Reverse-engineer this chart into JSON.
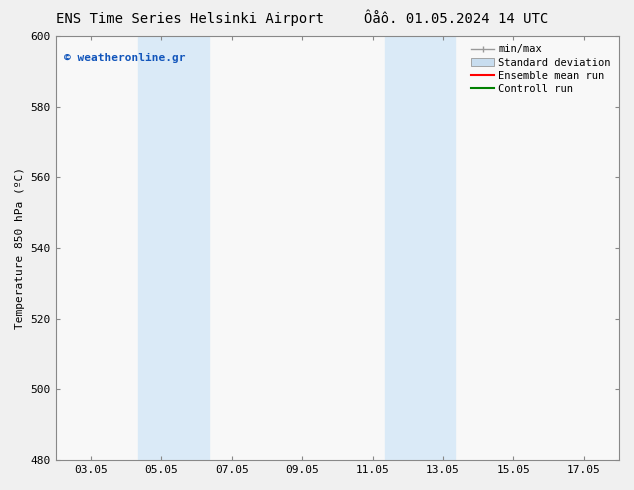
{
  "title_left": "ENS Time Series Helsinki Airport",
  "title_right": "Ôåô. 01.05.2024 14 UTC",
  "ylabel": "Temperature 850 hPa (ºC)",
  "ylim": [
    480,
    600
  ],
  "yticks": [
    480,
    500,
    520,
    540,
    560,
    580,
    600
  ],
  "xticks_labels": [
    "03.05",
    "05.05",
    "07.05",
    "09.05",
    "11.05",
    "13.05",
    "15.05",
    "17.05"
  ],
  "xticks_positions": [
    0,
    2,
    4,
    6,
    8,
    10,
    12,
    14
  ],
  "xlim": [
    -1,
    15
  ],
  "shaded_bands": [
    {
      "x_start": 1.35,
      "x_end": 3.35,
      "color": "#daeaf7"
    },
    {
      "x_start": 8.35,
      "x_end": 10.35,
      "color": "#daeaf7"
    }
  ],
  "legend_items": [
    {
      "label": "min/max",
      "color": "#aaaaaa",
      "type": "minmax"
    },
    {
      "label": "Standard deviation",
      "color": "#c8ddef",
      "type": "band"
    },
    {
      "label": "Ensemble mean run",
      "color": "#ff0000",
      "type": "line"
    },
    {
      "label": "Controll run",
      "color": "#008000",
      "type": "line"
    }
  ],
  "watermark_text": "© weatheronline.gr",
  "watermark_color": "#1155bb",
  "bg_color": "#f0f0f0",
  "plot_bg_color": "#f8f8f8",
  "border_color": "#888888",
  "title_color": "#000000",
  "font_size_title": 10,
  "font_size_ticks": 8,
  "font_size_ylabel": 8,
  "font_size_legend": 7.5,
  "font_size_watermark": 8
}
